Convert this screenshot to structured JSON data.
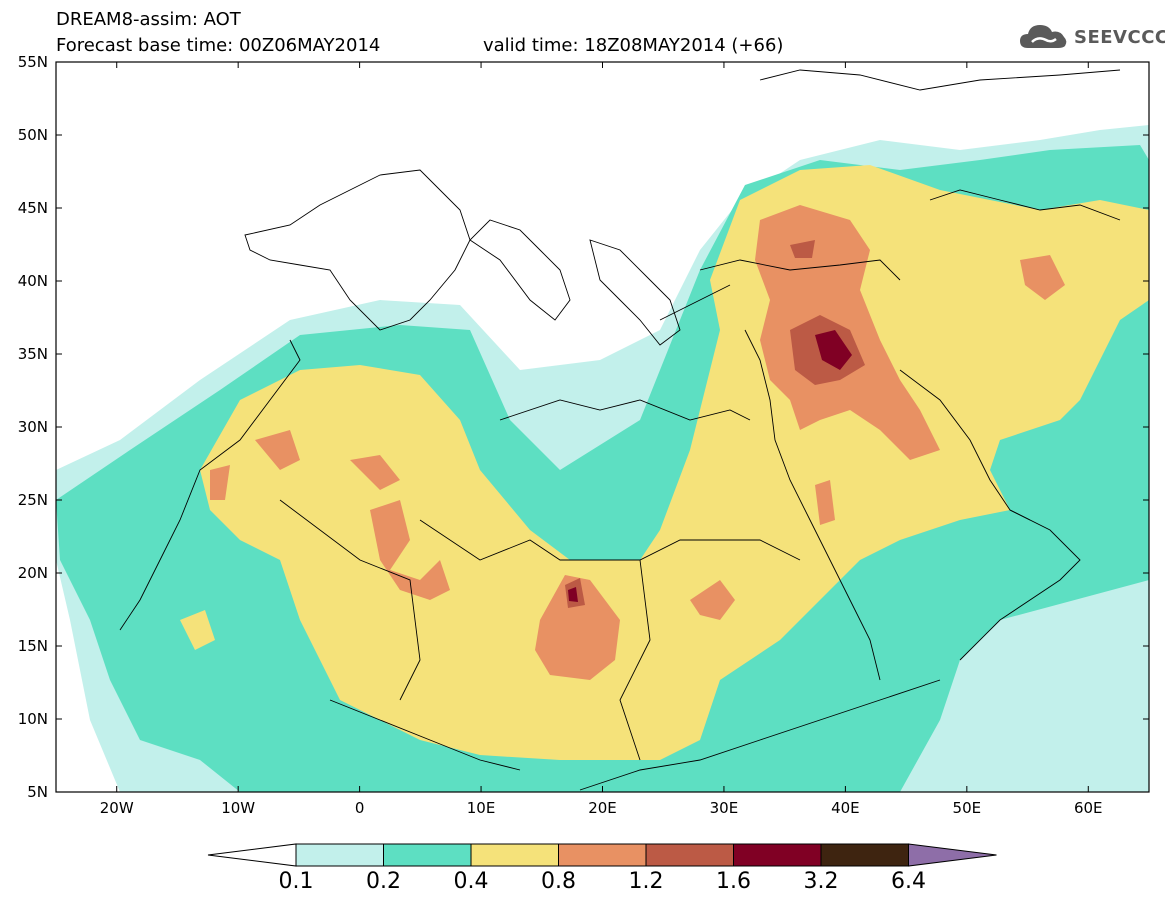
{
  "header": {
    "line1": "DREAM8-assim: AOT",
    "line2": "Forecast base time: 00Z06MAY2014",
    "valid_time": "valid time: 18Z08MAY2014 (+66)"
  },
  "logo": {
    "icon": "cloud-icon",
    "text": "SEEVCCC"
  },
  "map": {
    "lat_ticks": [
      "55N",
      "50N",
      "45N",
      "40N",
      "35N",
      "30N",
      "25N",
      "20N",
      "15N",
      "10N",
      "5N"
    ],
    "lon_ticks": [
      "20W",
      "10W",
      "0",
      "10E",
      "20E",
      "30E",
      "40E",
      "50E",
      "60E"
    ],
    "lon_range": [
      -25,
      65
    ],
    "lat_range": [
      5,
      55
    ]
  },
  "colorbar": {
    "labels": [
      "0.1",
      "0.2",
      "0.4",
      "0.8",
      "1.2",
      "1.6",
      "3.2",
      "6.4"
    ],
    "colors": [
      "#c2f0eb",
      "#5ddfc2",
      "#f5e27a",
      "#e89163",
      "#bc5a45",
      "#800024",
      "#3e2410",
      "#8e6ea8"
    ]
  }
}
